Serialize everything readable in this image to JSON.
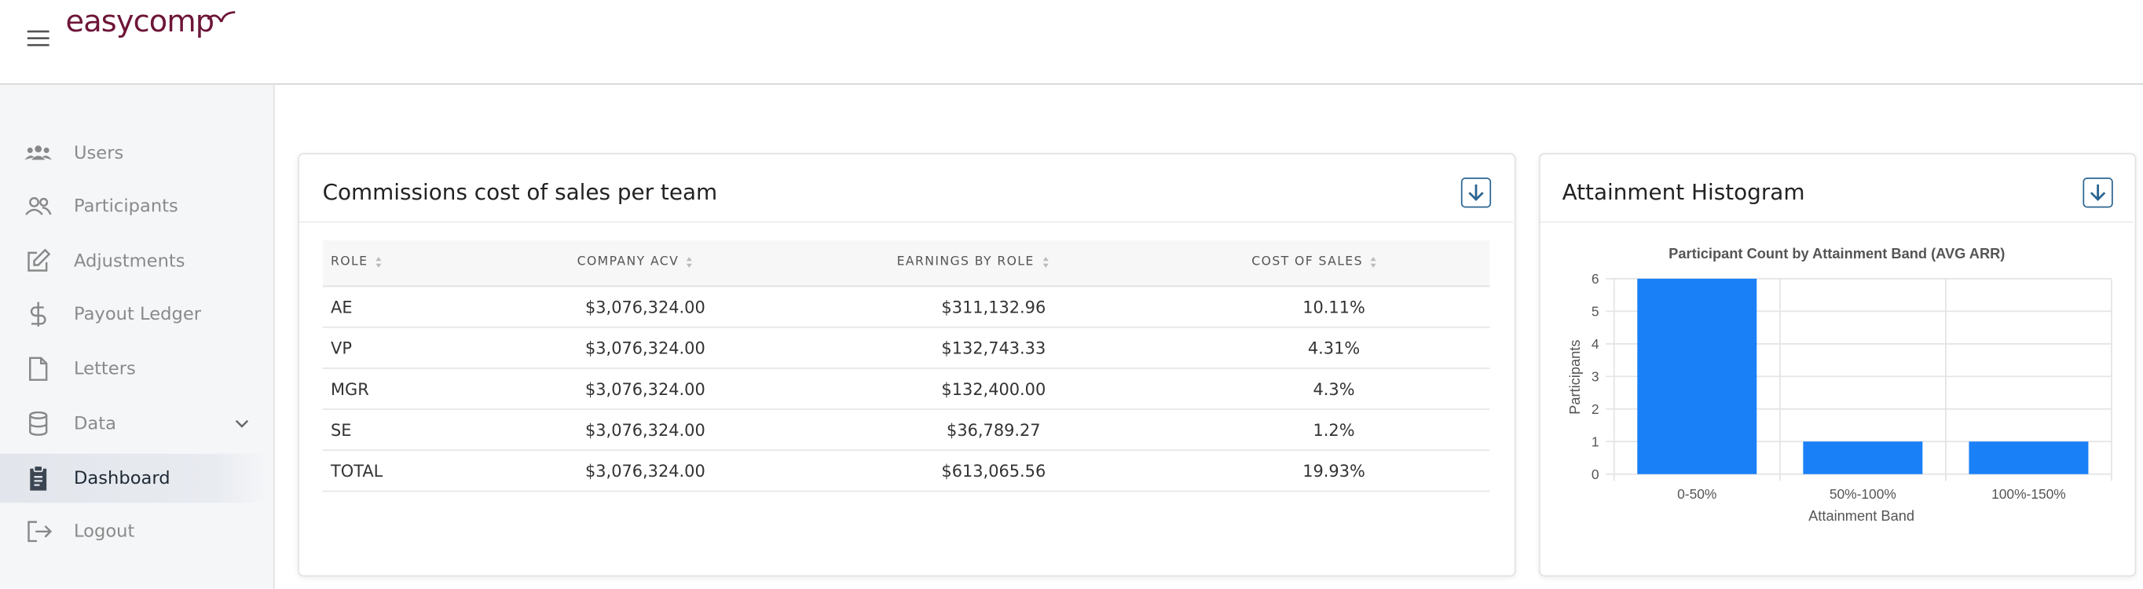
{
  "header": {
    "logo": "easycomp"
  },
  "nav": [
    "Users",
    "Participants",
    "Adjustments",
    "Payout Ledger",
    "Letters",
    "Data",
    "Dashboard",
    "Logout"
  ],
  "cards": [
    {
      "title": "Commissions cost of sales per team"
    },
    {
      "title": "Attainment Histogram"
    }
  ],
  "table": {
    "headers": [
      "ROLE",
      "COMPANY ACV",
      "EARNINGS BY ROLE",
      "COST OF SALES"
    ],
    "rows": [
      [
        "AE",
        "$3,076,324.00",
        "$311,132.96",
        "10.11%"
      ],
      [
        "VP",
        "$3,076,324.00",
        "$132,743.33",
        "4.31%"
      ],
      [
        "MGR",
        "$3,076,324.00",
        "$132,400.00",
        "4.3%"
      ],
      [
        "SE",
        "$3,076,324.00",
        "$36,789.27",
        "1.2%"
      ],
      [
        "TOTAL",
        "$3,076,324.00",
        "$613,065.56",
        "19.93%"
      ]
    ]
  },
  "chart_data": {
    "type": "bar",
    "title": "Participant Count by Attainment Band (AVG ARR)",
    "x_label": "Attainment Band",
    "y_label": "Participants",
    "categories": [
      "0-50%",
      "50%-100%",
      "100%-150%"
    ],
    "values": [
      6,
      1,
      1
    ],
    "color": "#1a80f7",
    "ylim": [
      0,
      6
    ],
    "yticks": [
      0,
      1,
      2,
      3,
      4,
      5,
      6
    ],
    "grid": true
  }
}
